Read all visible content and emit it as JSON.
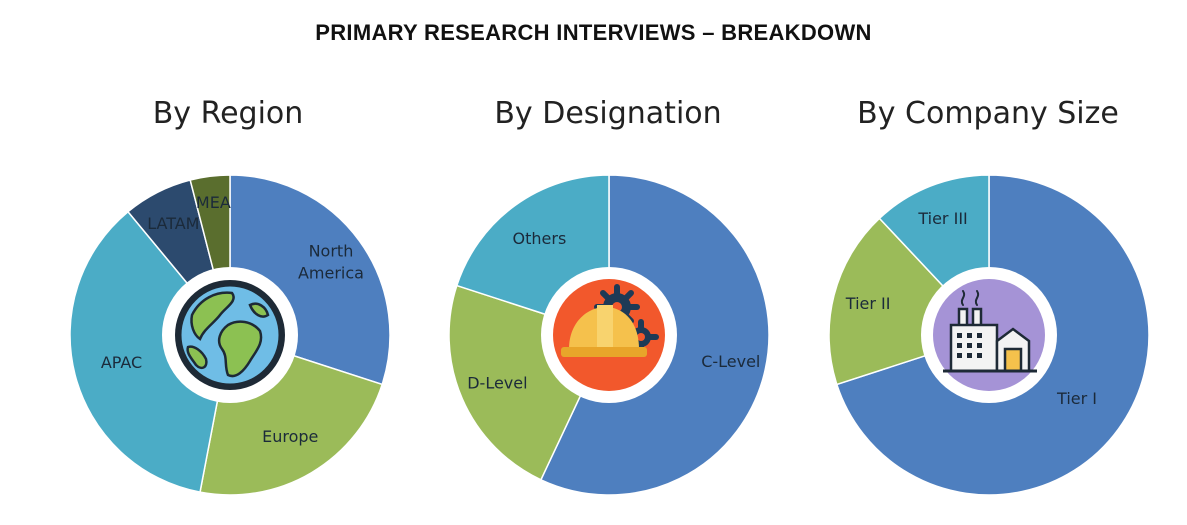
{
  "title": "PRIMARY RESEARCH INTERVIEWS – BREAKDOWN",
  "chart_data": [
    {
      "type": "pie",
      "title": "By Region",
      "center_icon": "globe-icon",
      "slices": [
        {
          "label": "North\nAmerica",
          "value": 30,
          "color": "#4e7fbf"
        },
        {
          "label": "Europe",
          "value": 23,
          "color": "#9bbb59"
        },
        {
          "label": "APAC",
          "value": 36,
          "color": "#4bacc6"
        },
        {
          "label": "LATAM",
          "value": 7,
          "color": "#2c4a6e"
        },
        {
          "label": "MEA",
          "value": 4,
          "color": "#5a6e2e"
        }
      ]
    },
    {
      "type": "pie",
      "title": "By Designation",
      "center_icon": "hardhat-gears-icon",
      "slices": [
        {
          "label": "C-Level",
          "value": 57,
          "color": "#4e7fbf"
        },
        {
          "label": "D-Level",
          "value": 23,
          "color": "#9bbb59"
        },
        {
          "label": "Others",
          "value": 20,
          "color": "#4bacc6"
        }
      ]
    },
    {
      "type": "pie",
      "title": "By Company Size",
      "center_icon": "factory-icon",
      "slices": [
        {
          "label": "Tier I",
          "value": 70,
          "color": "#4e7fbf"
        },
        {
          "label": "Tier II",
          "value": 18,
          "color": "#9bbb59"
        },
        {
          "label": "Tier III",
          "value": 12,
          "color": "#4bacc6"
        }
      ]
    }
  ]
}
